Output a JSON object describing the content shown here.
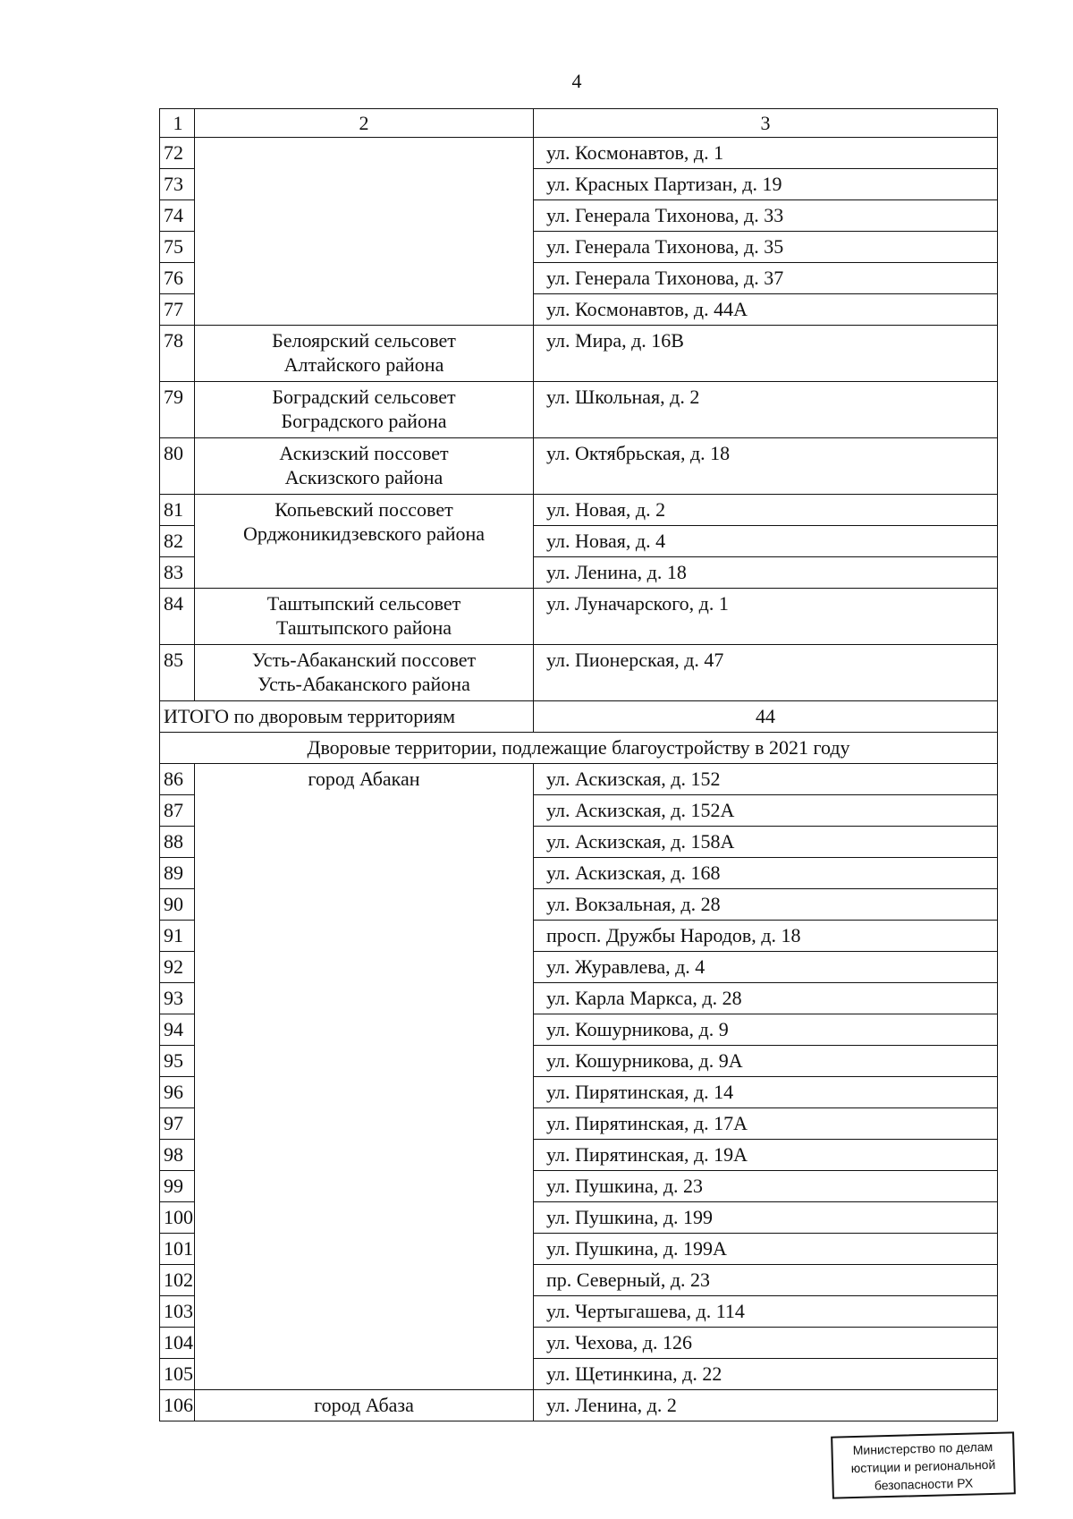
{
  "page_number": "4",
  "header": [
    "1",
    "2",
    "3"
  ],
  "rows": [
    {
      "n": "72",
      "org": "",
      "orgspan": 6,
      "addr": "ул. Космонавтов, д. 1"
    },
    {
      "n": "73",
      "addr": "ул. Красных Партизан, д. 19"
    },
    {
      "n": "74",
      "addr": "ул. Генерала Тихонова, д. 33"
    },
    {
      "n": "75",
      "addr": "ул. Генерала Тихонова, д. 35"
    },
    {
      "n": "76",
      "addr": "ул. Генерала Тихонова, д. 37"
    },
    {
      "n": "77",
      "addr": "ул. Космонавтов, д. 44А"
    },
    {
      "n": "78",
      "org": "Белоярский сельсовет\nАлтайского района",
      "orgspan": 1,
      "addr": "ул. Мира, д. 16В",
      "tall": true
    },
    {
      "n": "79",
      "org": "Боградский сельсовет\nБоградского района",
      "orgspan": 1,
      "addr": "ул. Школьная, д. 2",
      "tall": true
    },
    {
      "n": "80",
      "org": "Аскизский поссовет\nАскизского района",
      "orgspan": 1,
      "addr": "ул. Октябрьская, д. 18",
      "tall": true
    },
    {
      "n": "81",
      "org": "Копьевский поссовет\nОрджоникидзевского района",
      "orgspan": 3,
      "addr": "ул. Новая, д. 2"
    },
    {
      "n": "82",
      "addr": "ул. Новая, д. 4"
    },
    {
      "n": "83",
      "addr": "ул. Ленина, д. 18"
    },
    {
      "n": "84",
      "org": "Таштыпский сельсовет\nТаштыпского района",
      "orgspan": 1,
      "addr": "ул. Луначарского, д. 1",
      "tall": true
    },
    {
      "n": "85",
      "org": "Усть-Абаканский поссовет\nУсть-Абаканского района",
      "orgspan": 1,
      "addr": "ул. Пионерская, д. 47",
      "tall": true
    }
  ],
  "total": {
    "label": "ИТОГО по дворовым территориям",
    "value": "44"
  },
  "section_title": "Дворовые территории, подлежащие благоустройству в 2021 году",
  "rows2": [
    {
      "n": "86",
      "org": "город Абакан",
      "orgspan": 20,
      "addr": "ул. Аскизская, д. 152"
    },
    {
      "n": "87",
      "addr": "ул. Аскизская, д. 152А"
    },
    {
      "n": "88",
      "addr": "ул. Аскизская, д. 158А"
    },
    {
      "n": "89",
      "addr": "ул. Аскизская, д. 168"
    },
    {
      "n": "90",
      "addr": "ул. Вокзальная, д. 28"
    },
    {
      "n": "91",
      "addr": "просп. Дружбы Народов, д. 18"
    },
    {
      "n": "92",
      "addr": "ул. Журавлева, д. 4"
    },
    {
      "n": "93",
      "addr": "ул. Карла Маркса, д. 28"
    },
    {
      "n": "94",
      "addr": "ул. Кошурникова, д. 9"
    },
    {
      "n": "95",
      "addr": "ул. Кошурникова, д. 9А"
    },
    {
      "n": "96",
      "addr": "ул. Пирятинская, д. 14"
    },
    {
      "n": "97",
      "addr": "ул. Пирятинская, д. 17А"
    },
    {
      "n": "98",
      "addr": "ул. Пирятинская, д. 19А"
    },
    {
      "n": "99",
      "addr": "ул. Пушкина, д. 23"
    },
    {
      "n": "100",
      "addr": "ул. Пушкина, д. 199"
    },
    {
      "n": "101",
      "addr": "ул. Пушкина, д. 199А"
    },
    {
      "n": "102",
      "addr": "пр. Северный, д. 23"
    },
    {
      "n": "103",
      "addr": "ул. Чертыгашева, д. 114"
    },
    {
      "n": "104",
      "addr": "ул. Чехова, д. 126"
    },
    {
      "n": "105",
      "addr": "ул. Щетинкина, д. 22"
    },
    {
      "n": "106",
      "org": "город Абаза",
      "orgspan": 1,
      "addr": "ул. Ленина, д. 2"
    }
  ],
  "stamp": {
    "lines": [
      "Министерство по делам",
      "юстиции и региональной",
      "безопасности РХ"
    ]
  }
}
